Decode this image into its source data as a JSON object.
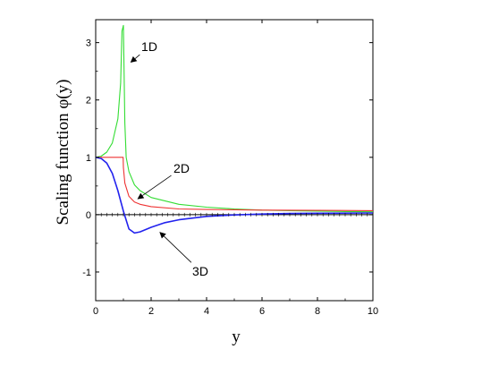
{
  "chart_data": {
    "type": "line",
    "title": "",
    "xlabel": "y",
    "ylabel": "Scaling function φ(y)",
    "xlim": [
      0,
      10
    ],
    "ylim": [
      -1.5,
      3.4
    ],
    "xticks": [
      0,
      2,
      4,
      6,
      8,
      10
    ],
    "yticks": [
      -1,
      0,
      1,
      2,
      3
    ],
    "grid": false,
    "legend": "none",
    "series": [
      {
        "name": "1D",
        "color": "#33dd33",
        "x": [
          0,
          0.2,
          0.4,
          0.6,
          0.8,
          0.9,
          0.95,
          1.0,
          1.05,
          1.1,
          1.2,
          1.4,
          1.6,
          2,
          3,
          4,
          5,
          6,
          7,
          8,
          9,
          10
        ],
        "y": [
          1.0,
          1.02,
          1.09,
          1.25,
          1.67,
          2.29,
          3.2,
          3.3,
          1.6,
          1.0,
          0.75,
          0.52,
          0.42,
          0.3,
          0.18,
          0.13,
          0.1,
          0.08,
          0.07,
          0.06,
          0.055,
          0.05
        ]
      },
      {
        "name": "2D",
        "color": "#ee3333",
        "x": [
          0,
          0.5,
          0.99,
          1.0,
          1.05,
          1.2,
          1.4,
          1.6,
          2,
          3,
          4,
          6,
          8,
          10
        ],
        "y": [
          1.0,
          1.0,
          1.0,
          0.82,
          0.55,
          0.32,
          0.22,
          0.18,
          0.14,
          0.1,
          0.09,
          0.08,
          0.075,
          0.07
        ]
      },
      {
        "name": "3D",
        "color": "#2222ee",
        "x": [
          0,
          0.2,
          0.4,
          0.6,
          0.8,
          1.0,
          1.2,
          1.4,
          1.6,
          2,
          2.5,
          3,
          4,
          5,
          6,
          7,
          8,
          10
        ],
        "y": [
          1.0,
          0.98,
          0.9,
          0.72,
          0.42,
          0.06,
          -0.25,
          -0.32,
          -0.3,
          -0.22,
          -0.14,
          -0.09,
          -0.03,
          -0.005,
          0.01,
          0.02,
          0.025,
          0.03
        ]
      }
    ],
    "annotations": [
      {
        "text": "1D",
        "series": "1D",
        "x": 1.25,
        "y": 2.65
      },
      {
        "text": "2D",
        "series": "2D",
        "x": 1.5,
        "y": 0.27
      },
      {
        "text": "3D",
        "series": "3D",
        "x": 2.3,
        "y": -0.3
      }
    ]
  }
}
